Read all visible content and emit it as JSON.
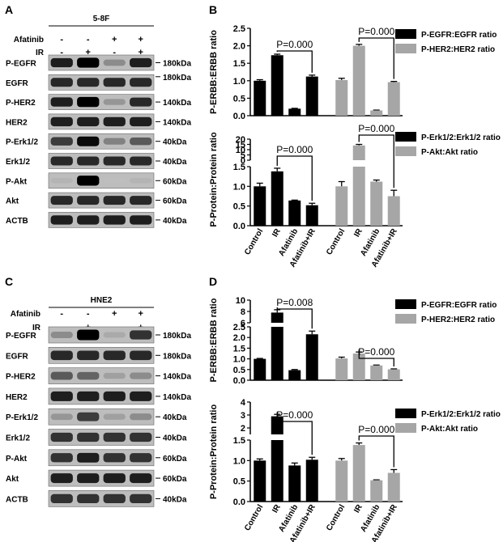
{
  "panel_a": {
    "letter": "A",
    "cell_line": "5-8F",
    "treatments": [
      {
        "name": "Afatinib",
        "signs": [
          "-",
          "-",
          "+",
          "+"
        ]
      },
      {
        "name": "IR",
        "signs": [
          "-",
          "+",
          "-",
          "+"
        ]
      }
    ],
    "blots": [
      {
        "label": "P-EGFR",
        "kda": "180kDa",
        "intensity": [
          0.85,
          1.0,
          0.3,
          0.85
        ],
        "dy": 0
      },
      {
        "label": "EGFR",
        "kda": "180kDa",
        "intensity": [
          0.8,
          0.8,
          0.8,
          0.8
        ],
        "dy": -7
      },
      {
        "label": "P-HER2",
        "kda": "140kDa",
        "intensity": [
          0.85,
          1.0,
          0.25,
          0.8
        ],
        "dy": 0
      },
      {
        "label": "HER2",
        "kda": "140kDa",
        "intensity": [
          0.85,
          0.85,
          0.85,
          0.85
        ],
        "dy": 0
      },
      {
        "label": "P-Erk1/2",
        "kda": "40kDa",
        "intensity": [
          0.7,
          0.95,
          0.35,
          0.55
        ],
        "dy": 0
      },
      {
        "label": "Erk1/2",
        "kda": "40kDa",
        "intensity": [
          0.8,
          0.8,
          0.8,
          0.8
        ],
        "dy": 0
      },
      {
        "label": "P-Akt",
        "kda": "60kDa",
        "intensity": [
          0.1,
          1.0,
          0.05,
          0.1
        ],
        "dy": 0
      },
      {
        "label": "Akt",
        "kda": "60kDa",
        "intensity": [
          0.8,
          0.8,
          0.8,
          0.8
        ],
        "dy": 0
      },
      {
        "label": "ACTB",
        "kda": "40kDa",
        "intensity": [
          0.85,
          0.85,
          0.85,
          0.85
        ],
        "dy": 0
      }
    ]
  },
  "panel_c": {
    "letter": "C",
    "cell_line": "HNE2",
    "treatments": [
      {
        "name": "Afatinib",
        "signs": [
          "-",
          "-",
          "+",
          "+"
        ]
      },
      {
        "name": "IR",
        "signs": [
          "-",
          "+",
          "-",
          "+"
        ]
      }
    ],
    "blots": [
      {
        "label": "P-EGFR",
        "kda": "180kDa",
        "intensity": [
          0.3,
          1.0,
          0.15,
          0.75
        ],
        "dy": 0
      },
      {
        "label": "EGFR",
        "kda": "180kDa",
        "intensity": [
          0.8,
          0.8,
          0.8,
          0.8
        ],
        "dy": 0
      },
      {
        "label": "P-HER2",
        "kda": "140kDa",
        "intensity": [
          0.55,
          0.5,
          0.2,
          0.3
        ],
        "dy": 0
      },
      {
        "label": "HER2",
        "kda": "140kDa",
        "intensity": [
          0.85,
          0.85,
          0.85,
          0.85
        ],
        "dy": 0
      },
      {
        "label": "P-Erk1/2",
        "kda": "40kDa",
        "intensity": [
          0.25,
          0.7,
          0.2,
          0.3
        ],
        "dy": 0
      },
      {
        "label": "Erk1/2",
        "kda": "40kDa",
        "intensity": [
          0.75,
          0.75,
          0.75,
          0.75
        ],
        "dy": 0
      },
      {
        "label": "P-Akt",
        "kda": "60kDa",
        "intensity": [
          0.75,
          0.85,
          0.75,
          0.75
        ],
        "dy": 0
      },
      {
        "label": "Akt",
        "kda": "60kDa",
        "intensity": [
          0.85,
          0.85,
          0.85,
          0.85
        ],
        "dy": 0
      },
      {
        "label": "ACTB",
        "kda": "40kDa",
        "intensity": [
          0.75,
          0.75,
          0.75,
          0.75
        ],
        "dy": 0
      }
    ]
  },
  "chart_data": [
    {
      "panel": "B",
      "part": "top",
      "type": "bar",
      "ylabel": "P-ERBB:ERBB ratio",
      "ylim": [
        0,
        2.5
      ],
      "yticks": [
        "0.0",
        "0.5",
        "1.0",
        "1.5",
        "2.0",
        "2.5"
      ],
      "series": [
        {
          "name": "P-EGFR:EGFR ratio",
          "color": "#000000",
          "values": [
            1.0,
            1.73,
            0.2,
            1.12
          ],
          "errors": [
            0.03,
            0.03,
            0.01,
            0.04
          ]
        },
        {
          "name": "P-HER2:HER2 ratio",
          "color": "#a6a6a6",
          "values": [
            1.02,
            2.0,
            0.15,
            0.96
          ],
          "errors": [
            0.05,
            0.04,
            0.01,
            0.02
          ]
        }
      ],
      "annotations": [
        "P=0.000",
        "P=0.000"
      ]
    },
    {
      "panel": "B",
      "part": "bottom",
      "type": "bar",
      "ylabel": "P-Protein:Protein ratio",
      "broken_axis": true,
      "lower_ylim": [
        0,
        1.5
      ],
      "lower_yticks": [
        "0.0",
        "0.5",
        "1.0",
        "1.5"
      ],
      "upper_ylim": [
        0,
        20
      ],
      "upper_yticks": [
        "0",
        "5",
        "10",
        "15",
        "20"
      ],
      "categories": [
        "Control",
        "IR",
        "Afatinib",
        "Afatinib+IR"
      ],
      "series": [
        {
          "name": "P-Erk1/2:Erk1/2 ratio",
          "color": "#000000",
          "values": [
            1.0,
            1.38,
            0.64,
            0.52
          ],
          "errors": [
            0.08,
            0.08,
            0.01,
            0.05
          ]
        },
        {
          "name": "P-Akt:Akt ratio",
          "color": "#a6a6a6",
          "values": [
            1.0,
            14.0,
            1.12,
            0.75
          ],
          "errors": [
            0.12,
            1.0,
            0.04,
            0.15
          ]
        }
      ],
      "annotations": [
        "P=0.000",
        "P=0.000"
      ]
    },
    {
      "panel": "D",
      "part": "top",
      "type": "bar",
      "ylabel": "P-ERBB:ERBB ratio",
      "broken_axis": true,
      "lower_ylim": [
        0,
        2.5
      ],
      "lower_yticks": [
        "0.0",
        "0.5",
        "1.0",
        "1.5",
        "2.0",
        "2.5"
      ],
      "upper_ylim": [
        6,
        10
      ],
      "upper_yticks": [
        "6",
        "8",
        "10"
      ],
      "series": [
        {
          "name": "P-EGFR:EGFR ratio",
          "color": "#000000",
          "values": [
            1.0,
            7.8,
            0.47,
            2.15
          ],
          "errors": [
            0.02,
            0.5,
            0.03,
            0.15
          ]
        },
        {
          "name": "P-HER2:HER2 ratio",
          "color": "#a6a6a6",
          "values": [
            1.02,
            1.25,
            0.69,
            0.51
          ],
          "errors": [
            0.06,
            0.07,
            0.02,
            0.02
          ]
        }
      ],
      "annotations": [
        "P=0.008",
        "P=0.000"
      ]
    },
    {
      "panel": "D",
      "part": "bottom",
      "type": "bar",
      "ylabel": "P-Protein:Protein ratio",
      "broken_axis": true,
      "lower_ylim": [
        0,
        1.5
      ],
      "lower_yticks": [
        "0.0",
        "0.5",
        "1.0",
        "1.5"
      ],
      "upper_ylim": [
        1.5,
        4
      ],
      "upper_yticks": [
        "2",
        "3",
        "4"
      ],
      "categories": [
        "Control",
        "IR",
        "Afatinib",
        "Afatinib+IR"
      ],
      "series": [
        {
          "name": "P-Erk1/2:Erk1/2 ratio",
          "color": "#000000",
          "values": [
            1.0,
            2.9,
            0.88,
            1.02
          ],
          "errors": [
            0.04,
            0.15,
            0.06,
            0.06
          ]
        },
        {
          "name": "P-Akt:Akt ratio",
          "color": "#a6a6a6",
          "values": [
            1.0,
            1.38,
            0.52,
            0.7
          ],
          "errors": [
            0.05,
            0.05,
            0.01,
            0.08
          ]
        }
      ],
      "annotations": [
        "P=0.000",
        "P=0.000"
      ]
    }
  ],
  "panel_b_letter": "B",
  "panel_d_letter": "D"
}
